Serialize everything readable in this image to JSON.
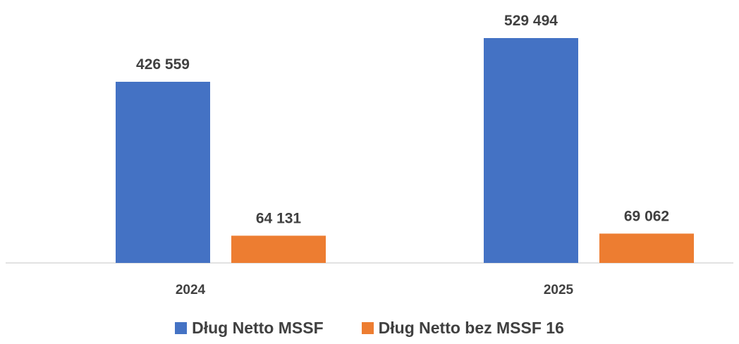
{
  "chart_data": {
    "type": "bar",
    "categories": [
      "2024",
      "2025"
    ],
    "series": [
      {
        "name": "Dług Netto MSSF",
        "values": [
          426559,
          529494
        ],
        "labels": [
          "426 559",
          "529 494"
        ],
        "color": "#4472C4"
      },
      {
        "name": "Dług Netto bez MSSF 16",
        "values": [
          64131,
          69062
        ],
        "labels": [
          "64 131",
          "69 062"
        ],
        "color": "#ED7D31"
      }
    ],
    "ylim": [
      0,
      529494
    ],
    "grid": false,
    "legend_position": "bottom"
  },
  "colors": {
    "axis": "#d9d9d9",
    "text": "#404040"
  }
}
